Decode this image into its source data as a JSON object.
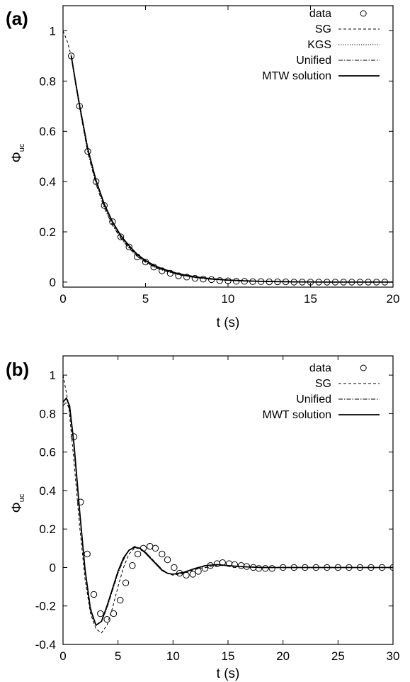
{
  "chart_data": [
    {
      "panel_label": "(a)",
      "type": "line",
      "xlabel": "t (s)",
      "ylabel": "Φ",
      "ylabel_sub": "uc",
      "xlim": [
        0,
        20
      ],
      "ylim": [
        -0.02,
        1.1
      ],
      "xticks": [
        0,
        5,
        10,
        15,
        20
      ],
      "yticks": [
        0,
        0.2,
        0.4,
        0.6,
        0.8,
        1
      ],
      "legend_position": "top-right",
      "series": [
        {
          "name": "data",
          "style": "circles",
          "x": [
            0.5,
            1,
            1.5,
            2,
            2.5,
            3,
            3.5,
            4,
            4.5,
            5,
            5.5,
            6,
            6.5,
            7,
            7.5,
            8,
            8.5,
            9,
            9.5,
            10,
            10.5,
            11,
            11.5,
            12,
            12.5,
            13,
            13.5,
            14,
            14.5,
            15,
            15.5,
            16,
            16.5,
            17,
            17.5,
            18,
            18.5,
            19,
            19.5
          ],
          "y": [
            0.9,
            0.7,
            0.52,
            0.4,
            0.305,
            0.24,
            0.18,
            0.14,
            0.1,
            0.08,
            0.06,
            0.045,
            0.035,
            0.025,
            0.02,
            0.015,
            0.012,
            0.01,
            0.006,
            0.005,
            0.003,
            0.003,
            0.002,
            0.002,
            0.001,
            0.001,
            0.001,
            0.0,
            0.0,
            0.0,
            0.0,
            0.0,
            0.0,
            0.0,
            0.0,
            0.0,
            0.0,
            0.0,
            0.0
          ]
        },
        {
          "name": "SG",
          "style": "dashed",
          "x": [
            0,
            0.25,
            0.5,
            0.75,
            1,
            1.5,
            2,
            2.5,
            3,
            3.5,
            4,
            4.5,
            5,
            5.5,
            6,
            7,
            8,
            9,
            10,
            11,
            12,
            14,
            16,
            18,
            20
          ],
          "y": [
            1.0,
            0.96,
            0.9,
            0.8,
            0.71,
            0.53,
            0.405,
            0.305,
            0.235,
            0.18,
            0.14,
            0.105,
            0.082,
            0.063,
            0.05,
            0.03,
            0.018,
            0.011,
            0.007,
            0.004,
            0.003,
            0.001,
            0.0,
            0.0,
            0.0
          ]
        },
        {
          "name": "KGS",
          "style": "dotted",
          "x": [
            0.5,
            0.75,
            1,
            1.5,
            2,
            2.5,
            3,
            3.5,
            4,
            4.5,
            5,
            5.5,
            6,
            7,
            8,
            9,
            10,
            11,
            12,
            14,
            16,
            18,
            20
          ],
          "y": [
            0.9,
            0.8,
            0.705,
            0.525,
            0.4,
            0.302,
            0.232,
            0.178,
            0.138,
            0.104,
            0.081,
            0.062,
            0.049,
            0.03,
            0.018,
            0.011,
            0.007,
            0.004,
            0.003,
            0.001,
            0.0,
            0.0,
            0.0
          ]
        },
        {
          "name": "Unified",
          "style": "dashdot",
          "x": [
            0.5,
            0.75,
            1,
            1.5,
            2,
            2.5,
            3,
            3.5,
            4,
            4.5,
            5,
            5.5,
            6,
            7,
            8,
            9,
            10,
            11,
            12,
            14,
            16,
            18,
            20
          ],
          "y": [
            0.895,
            0.79,
            0.695,
            0.515,
            0.39,
            0.295,
            0.226,
            0.174,
            0.135,
            0.102,
            0.079,
            0.061,
            0.048,
            0.029,
            0.018,
            0.011,
            0.007,
            0.004,
            0.003,
            0.001,
            0.0,
            0.0,
            0.0
          ]
        },
        {
          "name": "MTW solution",
          "style": "solid",
          "x": [
            0.5,
            0.75,
            1,
            1.5,
            2,
            2.5,
            3,
            3.5,
            4,
            4.5,
            5,
            5.5,
            6,
            7,
            8,
            9,
            10,
            11,
            12,
            14,
            16,
            18,
            20
          ],
          "y": [
            0.9,
            0.8,
            0.705,
            0.53,
            0.405,
            0.31,
            0.24,
            0.185,
            0.145,
            0.11,
            0.086,
            0.067,
            0.053,
            0.033,
            0.021,
            0.013,
            0.008,
            0.005,
            0.003,
            0.001,
            0.0,
            0.0,
            0.0
          ]
        }
      ]
    },
    {
      "panel_label": "(b)",
      "type": "line",
      "xlabel": "t (s)",
      "ylabel": "Φ",
      "ylabel_sub": "uc",
      "xlim": [
        0,
        30
      ],
      "ylim": [
        -0.4,
        1.1
      ],
      "xticks": [
        0,
        5,
        10,
        15,
        20,
        25,
        30
      ],
      "yticks": [
        -0.4,
        -0.2,
        0,
        0.2,
        0.4,
        0.6,
        0.8,
        1
      ],
      "legend_position": "top-right",
      "series": [
        {
          "name": "data",
          "style": "circles",
          "x": [
            1.0,
            1.6,
            2.2,
            2.8,
            3.4,
            4.0,
            4.6,
            5.2,
            5.7,
            6.3,
            6.8,
            7.3,
            7.9,
            8.4,
            9.0,
            9.5,
            10.1,
            10.6,
            11.2,
            11.8,
            12.3,
            12.9,
            13.4,
            14.0,
            14.5,
            15.1,
            15.6,
            16.2,
            16.7,
            17.3,
            17.8,
            18.4,
            19.0,
            20.0,
            21.0,
            22.0,
            23.0,
            24.0,
            25.0,
            26.0,
            27.0,
            28.0,
            29.0,
            30.0
          ],
          "y": [
            0.68,
            0.34,
            0.07,
            -0.14,
            -0.24,
            -0.27,
            -0.24,
            -0.17,
            -0.08,
            0.01,
            0.07,
            0.1,
            0.11,
            0.1,
            0.07,
            0.04,
            0.0,
            -0.03,
            -0.04,
            -0.035,
            -0.02,
            -0.005,
            0.01,
            0.02,
            0.025,
            0.02,
            0.015,
            0.01,
            0.005,
            0.0,
            -0.005,
            -0.005,
            -0.005,
            0.0,
            0.0,
            0.0,
            0.0,
            0.0,
            0.0,
            0.0,
            0.0,
            0.0,
            0.0,
            0.0
          ]
        },
        {
          "name": "SG",
          "style": "dashed",
          "x": [
            0,
            0.5,
            1,
            1.5,
            2,
            2.5,
            3,
            3.5,
            4,
            4.5,
            5,
            5.5,
            6,
            6.5,
            7,
            7.5,
            8,
            8.5,
            9,
            9.5,
            10,
            11,
            12,
            13,
            14,
            15,
            16,
            18,
            20,
            25,
            30
          ],
          "y": [
            1.0,
            0.85,
            0.55,
            0.22,
            -0.06,
            -0.24,
            -0.32,
            -0.34,
            -0.3,
            -0.21,
            -0.1,
            0.0,
            0.07,
            0.1,
            0.1,
            0.08,
            0.05,
            0.02,
            -0.01,
            -0.03,
            -0.04,
            -0.03,
            -0.01,
            0.0,
            0.01,
            0.01,
            0.005,
            0.0,
            0.0,
            0.0,
            0.0
          ]
        },
        {
          "name": "Unified",
          "style": "dashdot",
          "x": [
            0,
            0.3,
            0.6,
            1,
            1.5,
            2,
            2.5,
            3,
            3.5,
            4,
            4.5,
            5,
            5.5,
            6,
            6.5,
            7,
            7.5,
            8,
            8.5,
            9,
            9.5,
            10,
            11,
            12,
            13,
            14,
            15,
            16,
            18,
            20,
            25,
            30
          ],
          "y": [
            0.84,
            0.86,
            0.82,
            0.62,
            0.29,
            -0.01,
            -0.21,
            -0.3,
            -0.28,
            -0.21,
            -0.12,
            -0.03,
            0.04,
            0.09,
            0.11,
            0.1,
            0.08,
            0.05,
            0.02,
            -0.01,
            -0.03,
            -0.035,
            -0.025,
            -0.005,
            0.01,
            0.015,
            0.01,
            0.005,
            0.0,
            0.0,
            0.0,
            0.0
          ]
        },
        {
          "name": "MWT solution",
          "style": "solid",
          "x": [
            0,
            0.3,
            0.6,
            1,
            1.5,
            2,
            2.5,
            3,
            3.5,
            4,
            4.5,
            5,
            5.5,
            6,
            6.5,
            7,
            7.5,
            8,
            8.5,
            9,
            9.5,
            10,
            11,
            12,
            13,
            14,
            15,
            16,
            18,
            20,
            25,
            30
          ],
          "y": [
            0.86,
            0.88,
            0.84,
            0.64,
            0.3,
            -0.01,
            -0.22,
            -0.3,
            -0.28,
            -0.2,
            -0.11,
            -0.02,
            0.05,
            0.09,
            0.105,
            0.1,
            0.075,
            0.045,
            0.015,
            -0.015,
            -0.03,
            -0.035,
            -0.025,
            -0.005,
            0.01,
            0.015,
            0.01,
            0.005,
            0.0,
            0.0,
            0.0,
            0.0
          ]
        }
      ]
    }
  ]
}
